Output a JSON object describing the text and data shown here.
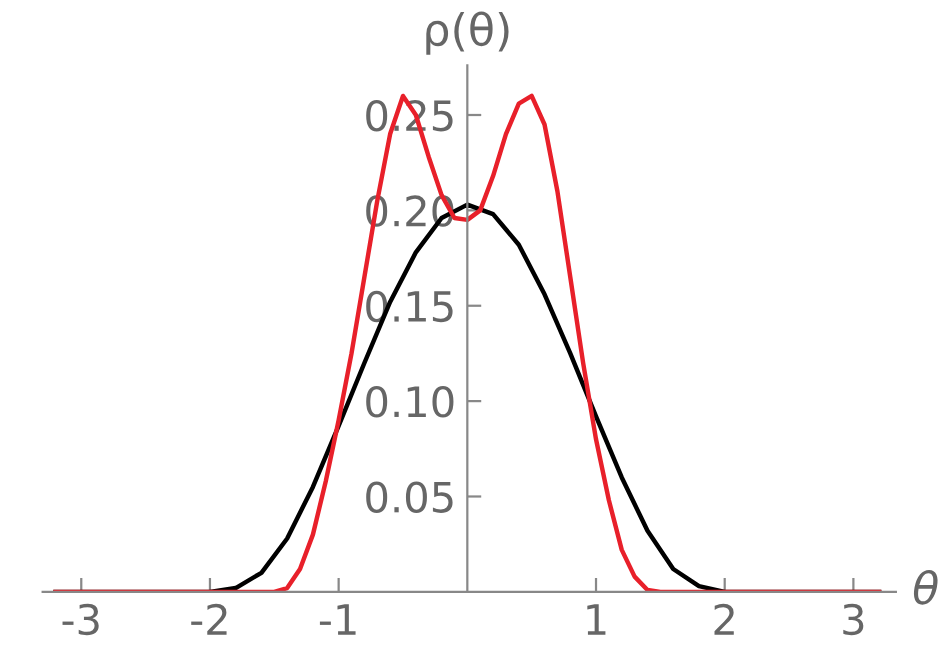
{
  "chart_data": {
    "type": "line",
    "xlabel": "θ",
    "ylabel": "ρ(θ)",
    "xlim": [
      -3.3,
      3.33
    ],
    "ylim": [
      0,
      0.276
    ],
    "xticks": [
      -3,
      -2,
      -1,
      1,
      2,
      3
    ],
    "yticks": [
      0.05,
      {
        "value": 0.1,
        "label": "0.10"
      },
      0.15,
      {
        "value": 0.2,
        "label": "0.20"
      },
      0.25
    ],
    "grid": false,
    "legend": false,
    "marker": "none",
    "line_style": "solid",
    "series": [
      {
        "color": "#000000",
        "x": [
          -3.2,
          -2,
          -1.8,
          -1.6,
          -1.4,
          -1.2,
          -1,
          -0.8,
          -0.6,
          -0.4,
          -0.2,
          0,
          0.2,
          0.4,
          0.6,
          0.8,
          1,
          1.2,
          1.4,
          1.6,
          1.8,
          2,
          3.2
        ],
        "values": [
          0,
          0,
          0.002,
          0.01,
          0.028,
          0.055,
          0.087,
          0.12,
          0.152,
          0.178,
          0.196,
          0.203,
          0.198,
          0.182,
          0.156,
          0.125,
          0.092,
          0.06,
          0.032,
          0.012,
          0.003,
          0,
          0
        ]
      },
      {
        "color": "#e8202a",
        "x": [
          -3.2,
          -1.5,
          -1.4,
          -1.3,
          -1.2,
          -1.1,
          -1,
          -0.9,
          -0.8,
          -0.7,
          -0.6,
          -0.5,
          -0.4,
          -0.3,
          -0.2,
          -0.1,
          0,
          0.1,
          0.2,
          0.3,
          0.4,
          0.5,
          0.6,
          0.7,
          0.8,
          0.9,
          1,
          1.1,
          1.2,
          1.3,
          1.4,
          1.5,
          3.2
        ],
        "values": [
          0,
          0,
          0.002,
          0.012,
          0.03,
          0.058,
          0.09,
          0.125,
          0.165,
          0.205,
          0.24,
          0.26,
          0.25,
          0.228,
          0.208,
          0.196,
          0.195,
          0.2,
          0.218,
          0.24,
          0.256,
          0.26,
          0.245,
          0.21,
          0.165,
          0.12,
          0.08,
          0.048,
          0.022,
          0.008,
          0.001,
          0,
          0
        ]
      }
    ]
  }
}
